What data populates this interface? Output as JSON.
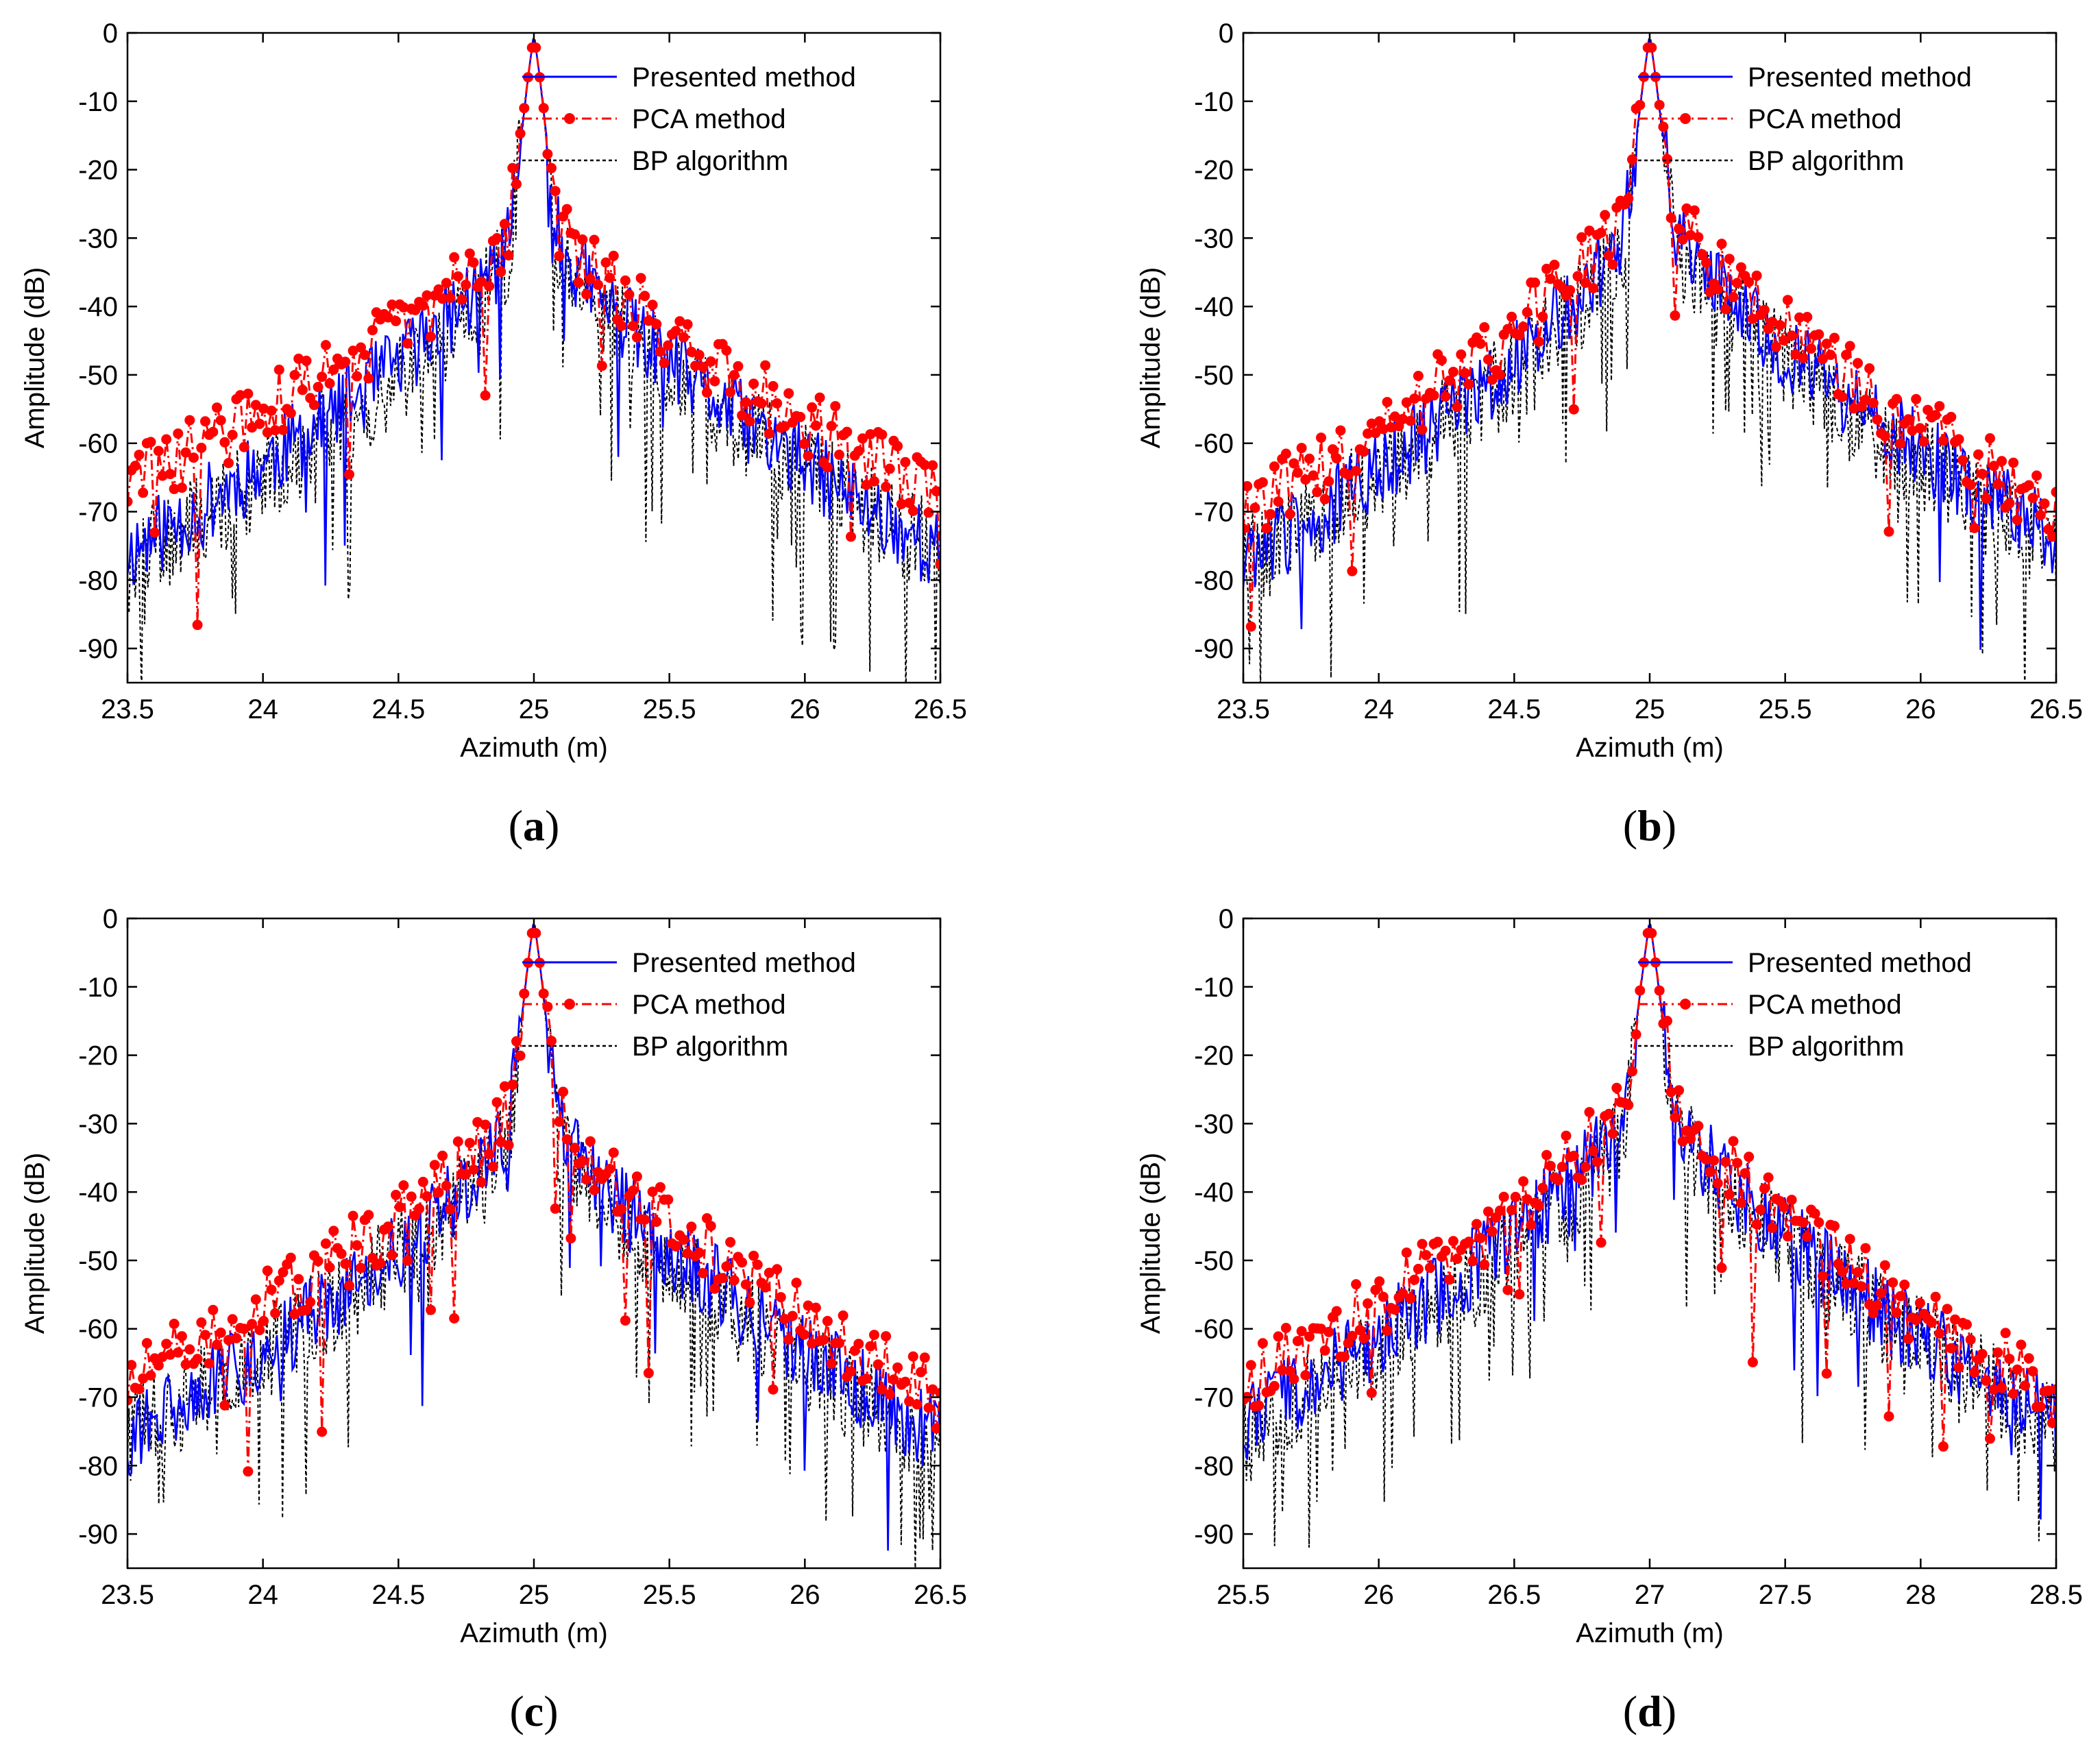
{
  "figure": {
    "panels_count": 4
  },
  "legend": {
    "presented_label": "Presented method",
    "pca_label": "PCA method",
    "bp_label": "BP algorithm"
  },
  "colors": {
    "presented": "#0000ff",
    "pca": "#ff0000",
    "bp": "#000000",
    "axes": "#000000",
    "background": "#ffffff"
  },
  "chart_data": [
    {
      "type": "line",
      "panel_label": "(a)",
      "panel_letter": "a",
      "xlabel": "Azimuth (m)",
      "ylabel": "Amplitude (dB)",
      "xlim": [
        23.5,
        26.5
      ],
      "ylim": [
        -95,
        0
      ],
      "xticks": [
        "23.5",
        "24",
        "24.5",
        "25",
        "25.5",
        "26",
        "26.5"
      ],
      "yticks": [
        "0",
        "-10",
        "-20",
        "-30",
        "-40",
        "-50",
        "-60",
        "-70",
        "-80",
        "-90"
      ],
      "peak": 25.0,
      "legend_position": "top-right",
      "series": [
        {
          "name": "Presented method",
          "style": "solid",
          "seed": 11,
          "envelope": {
            "peak": 0,
            "near": -30,
            "far_left": -76,
            "far_right": -76,
            "noise": 6
          }
        },
        {
          "name": "PCA method",
          "style": "dash-dot-marker",
          "seed": 29,
          "envelope": {
            "peak": 0,
            "near": -28,
            "far_left": -66,
            "far_right": -68,
            "noise": 5
          }
        },
        {
          "name": "BP algorithm",
          "style": "dotted",
          "seed": 47,
          "envelope": {
            "peak": 0,
            "near": -32,
            "far_left": -78,
            "far_right": -76,
            "noise": 7
          }
        }
      ]
    },
    {
      "type": "line",
      "panel_label": "(b)",
      "panel_letter": "b",
      "xlabel": "Azimuth (m)",
      "ylabel": "Amplitude (dB)",
      "xlim": [
        23.5,
        26.5
      ],
      "ylim": [
        -95,
        0
      ],
      "xticks": [
        "23.5",
        "24",
        "24.5",
        "25",
        "25.5",
        "26",
        "26.5"
      ],
      "yticks": [
        "0",
        "-10",
        "-20",
        "-30",
        "-40",
        "-50",
        "-60",
        "-70",
        "-80",
        "-90"
      ],
      "peak": 25.0,
      "legend_position": "top-right",
      "series": [
        {
          "name": "Presented method",
          "style": "solid",
          "seed": 13,
          "envelope": {
            "peak": 0,
            "near": -28,
            "far_left": -78,
            "far_right": -74,
            "noise": 6
          }
        },
        {
          "name": "PCA method",
          "style": "dash-dot-marker",
          "seed": 31,
          "envelope": {
            "peak": 0,
            "near": -26,
            "far_left": -70,
            "far_right": -70,
            "noise": 5
          }
        },
        {
          "name": "BP algorithm",
          "style": "dotted",
          "seed": 53,
          "envelope": {
            "peak": 0,
            "near": -30,
            "far_left": -78,
            "far_right": -76,
            "noise": 7
          }
        }
      ]
    },
    {
      "type": "line",
      "panel_label": "(c)",
      "panel_letter": "c",
      "xlabel": "Azimuth (m)",
      "ylabel": "Amplitude (dB)",
      "xlim": [
        23.5,
        26.5
      ],
      "ylim": [
        -95,
        0
      ],
      "xticks": [
        "23.5",
        "24",
        "24.5",
        "25",
        "25.5",
        "26",
        "26.5"
      ],
      "yticks": [
        "0",
        "-10",
        "-20",
        "-30",
        "-40",
        "-50",
        "-60",
        "-70",
        "-80",
        "-90"
      ],
      "peak": 25.0,
      "legend_position": "top-right",
      "series": [
        {
          "name": "Presented method",
          "style": "solid",
          "seed": 17,
          "envelope": {
            "peak": 0,
            "near": -30,
            "far_left": -76,
            "far_right": -76,
            "noise": 6
          }
        },
        {
          "name": "PCA method",
          "style": "dash-dot-marker",
          "seed": 37,
          "envelope": {
            "peak": 0,
            "near": -28,
            "far_left": -68,
            "far_right": -70,
            "noise": 5
          }
        },
        {
          "name": "BP algorithm",
          "style": "dotted",
          "seed": 59,
          "envelope": {
            "peak": 0,
            "near": -32,
            "far_left": -76,
            "far_right": -78,
            "noise": 7
          }
        }
      ]
    },
    {
      "type": "line",
      "panel_label": "(d)",
      "panel_letter": "d",
      "xlabel": "Azimuth (m)",
      "ylabel": "Amplitude (dB)",
      "xlim": [
        25.5,
        28.5
      ],
      "ylim": [
        -95,
        0
      ],
      "xticks": [
        "25.5",
        "26",
        "26.5",
        "27",
        "27.5",
        "28",
        "28.5"
      ],
      "yticks": [
        "0",
        "-10",
        "-20",
        "-30",
        "-40",
        "-50",
        "-60",
        "-70",
        "-80",
        "-90"
      ],
      "peak": 27.0,
      "legend_position": "top-right",
      "series": [
        {
          "name": "Presented method",
          "style": "solid",
          "seed": 19,
          "envelope": {
            "peak": 0,
            "near": -28,
            "far_left": -74,
            "far_right": -74,
            "noise": 6
          }
        },
        {
          "name": "PCA method",
          "style": "dash-dot-marker",
          "seed": 41,
          "envelope": {
            "peak": 0,
            "near": -26,
            "far_left": -68,
            "far_right": -70,
            "noise": 5
          }
        },
        {
          "name": "BP algorithm",
          "style": "dotted",
          "seed": 61,
          "envelope": {
            "peak": 0,
            "near": -30,
            "far_left": -76,
            "far_right": -74,
            "noise": 7
          }
        }
      ]
    }
  ]
}
